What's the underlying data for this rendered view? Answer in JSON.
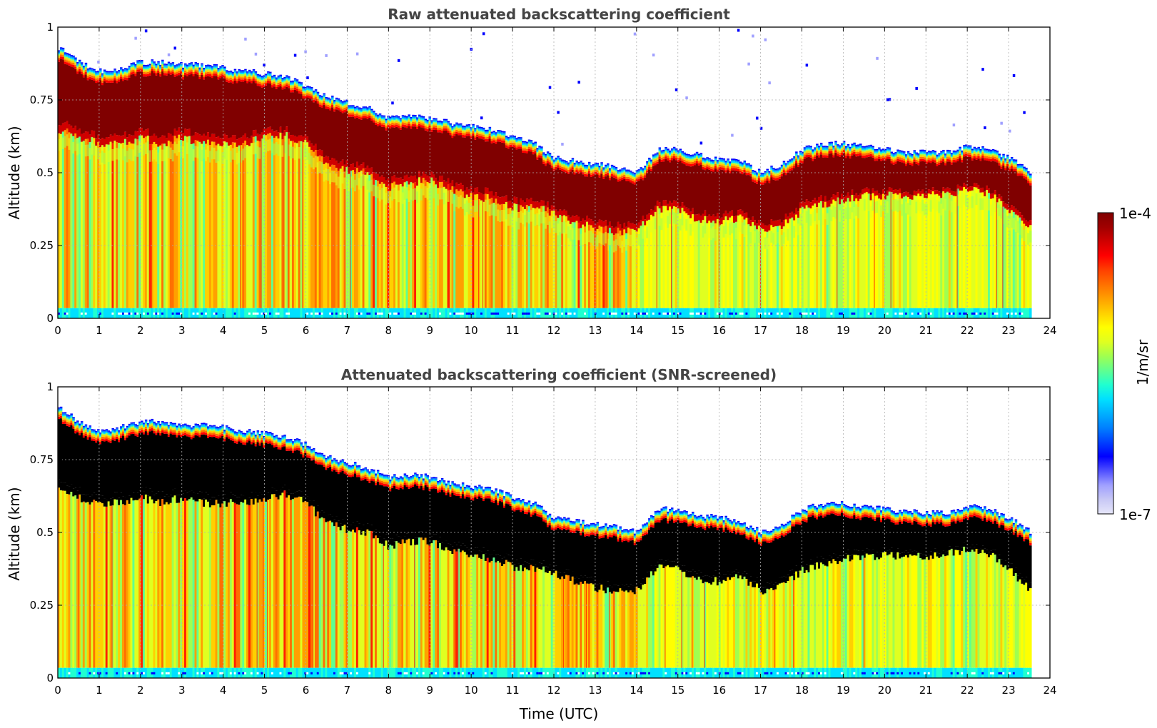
{
  "chart_data": [
    {
      "type": "heatmap",
      "title": "Raw attenuated backscattering coefficient",
      "xlabel": "",
      "ylabel": "Altitude (km)",
      "xlim": [
        0,
        24
      ],
      "ylim": [
        0,
        1
      ],
      "xticks": [
        "0",
        "1",
        "2",
        "3",
        "4",
        "5",
        "6",
        "7",
        "8",
        "9",
        "10",
        "11",
        "12",
        "13",
        "14",
        "15",
        "16",
        "17",
        "18",
        "19",
        "20",
        "21",
        "22",
        "23",
        "24"
      ],
      "yticks": [
        "0",
        "0.25",
        "0.5",
        "0.75",
        "1"
      ],
      "grid": true,
      "screened": false,
      "data_end_time": 23.55,
      "cloud_top_km": [
        [
          0,
          0.93
        ],
        [
          0.5,
          0.88
        ],
        [
          1,
          0.85
        ],
        [
          1.5,
          0.86
        ],
        [
          2,
          0.88
        ],
        [
          2.5,
          0.88
        ],
        [
          3,
          0.87
        ],
        [
          3.5,
          0.87
        ],
        [
          4,
          0.86
        ],
        [
          4.5,
          0.85
        ],
        [
          5,
          0.84
        ],
        [
          5.5,
          0.83
        ],
        [
          6,
          0.8
        ],
        [
          6.5,
          0.76
        ],
        [
          7,
          0.74
        ],
        [
          7.5,
          0.72
        ],
        [
          8,
          0.69
        ],
        [
          8.5,
          0.7
        ],
        [
          9,
          0.69
        ],
        [
          9.5,
          0.67
        ],
        [
          10,
          0.66
        ],
        [
          10.5,
          0.65
        ],
        [
          11,
          0.62
        ],
        [
          11.5,
          0.6
        ],
        [
          12,
          0.55
        ],
        [
          12.5,
          0.54
        ],
        [
          13,
          0.53
        ],
        [
          13.5,
          0.52
        ],
        [
          14,
          0.5
        ],
        [
          14.5,
          0.58
        ],
        [
          15,
          0.58
        ],
        [
          15.5,
          0.56
        ],
        [
          16,
          0.55
        ],
        [
          16.5,
          0.54
        ],
        [
          17,
          0.5
        ],
        [
          17.5,
          0.53
        ],
        [
          18,
          0.58
        ],
        [
          18.5,
          0.6
        ],
        [
          19,
          0.6
        ],
        [
          19.5,
          0.59
        ],
        [
          20,
          0.58
        ],
        [
          20.5,
          0.57
        ],
        [
          21,
          0.57
        ],
        [
          21.5,
          0.57
        ],
        [
          22,
          0.59
        ],
        [
          22.5,
          0.58
        ],
        [
          23,
          0.55
        ],
        [
          23.55,
          0.5
        ]
      ],
      "cloud_base_km": [
        [
          0,
          0.65
        ],
        [
          0.5,
          0.62
        ],
        [
          1,
          0.6
        ],
        [
          1.5,
          0.6
        ],
        [
          2,
          0.62
        ],
        [
          2.5,
          0.6
        ],
        [
          3,
          0.62
        ],
        [
          3.5,
          0.6
        ],
        [
          4,
          0.6
        ],
        [
          4.5,
          0.6
        ],
        [
          5,
          0.62
        ],
        [
          5.5,
          0.63
        ],
        [
          6,
          0.6
        ],
        [
          6.5,
          0.53
        ],
        [
          7,
          0.51
        ],
        [
          7.5,
          0.5
        ],
        [
          8,
          0.45
        ],
        [
          8.5,
          0.47
        ],
        [
          9,
          0.47
        ],
        [
          9.5,
          0.44
        ],
        [
          10,
          0.42
        ],
        [
          10.5,
          0.41
        ],
        [
          11,
          0.38
        ],
        [
          11.5,
          0.38
        ],
        [
          12,
          0.36
        ],
        [
          12.5,
          0.33
        ],
        [
          13,
          0.31
        ],
        [
          13.5,
          0.3
        ],
        [
          14,
          0.3
        ],
        [
          14.5,
          0.38
        ],
        [
          15,
          0.37
        ],
        [
          15.5,
          0.34
        ],
        [
          16,
          0.33
        ],
        [
          16.5,
          0.35
        ],
        [
          17,
          0.3
        ],
        [
          17.5,
          0.32
        ],
        [
          18,
          0.37
        ],
        [
          18.5,
          0.39
        ],
        [
          19,
          0.41
        ],
        [
          19.5,
          0.42
        ],
        [
          20,
          0.42
        ],
        [
          20.5,
          0.42
        ],
        [
          21,
          0.42
        ],
        [
          21.5,
          0.43
        ],
        [
          22,
          0.44
        ],
        [
          22.5,
          0.43
        ],
        [
          23,
          0.37
        ],
        [
          23.55,
          0.3
        ]
      ]
    },
    {
      "type": "heatmap",
      "title": "Attenuated backscattering coefficient (SNR-screened)",
      "xlabel": "Time (UTC)",
      "ylabel": "Altitude (km)",
      "xlim": [
        0,
        24
      ],
      "ylim": [
        0,
        1
      ],
      "xticks": [
        "0",
        "1",
        "2",
        "3",
        "4",
        "5",
        "6",
        "7",
        "8",
        "9",
        "10",
        "11",
        "12",
        "13",
        "14",
        "15",
        "16",
        "17",
        "18",
        "19",
        "20",
        "21",
        "22",
        "23",
        "24"
      ],
      "yticks": [
        "0",
        "0.25",
        "0.5",
        "0.75",
        "1"
      ],
      "grid": true,
      "screened": true,
      "data_end_time": 23.55
    }
  ],
  "colorbar": {
    "max_label": "1e-4",
    "min_label": "1e-7",
    "unit_label": "1/m/sr",
    "colors": [
      "#e6e6fa",
      "#c8c8f5",
      "#a0a0ff",
      "#5050ff",
      "#0000ff",
      "#0040ff",
      "#0080ff",
      "#00b0ff",
      "#00e0ff",
      "#20ffd0",
      "#60ff90",
      "#a0ff50",
      "#e0ff20",
      "#ffff00",
      "#ffd000",
      "#ffa000",
      "#ff7000",
      "#ff4000",
      "#ff0000",
      "#d00000",
      "#a00000",
      "#800000"
    ]
  }
}
